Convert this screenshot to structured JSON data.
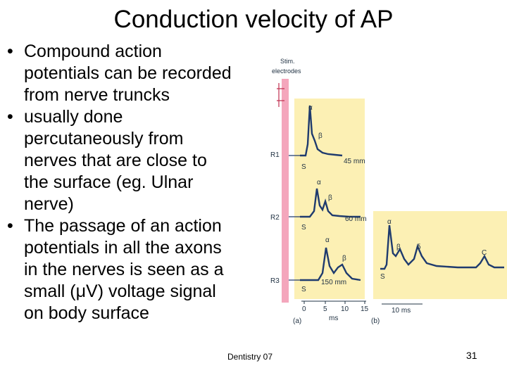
{
  "slide": {
    "title": "Conduction velocity of AP",
    "bullets": [
      {
        "bullet": "•",
        "lines": [
          "Compound action",
          "potentials can be recorded",
          "from nerve truncks"
        ]
      },
      {
        "bullet": "•",
        "lines": [
          "usually done",
          "percutaneously from",
          "nerves that are close to",
          "the surface (eg. Ulnar",
          "nerve)"
        ]
      },
      {
        "bullet": "•",
        "lines": [
          "The passage of an action",
          "potentials in all the axons",
          "in the nerves is seen as a",
          "small (μV) voltage signal",
          "on body surface"
        ]
      }
    ],
    "footer": "Dentistry 07",
    "page_number": "31"
  },
  "figure": {
    "stim_label_1": "Stim.",
    "stim_label_2": "electrodes",
    "panel_a": {
      "recordings": [
        {
          "label": "R1",
          "s_label": "S",
          "distance": "45 mm",
          "alpha": "α",
          "beta": "β"
        },
        {
          "label": "R2",
          "s_label": "S",
          "distance": "60 mm",
          "alpha": "α",
          "beta": "β"
        },
        {
          "label": "R3",
          "s_label": "S",
          "distance": "150 mm",
          "alpha": "α",
          "beta": "β"
        }
      ],
      "axis_ticks": [
        "0",
        "5",
        "10",
        "15"
      ],
      "axis_unit": "ms",
      "panel_label": "(a)"
    },
    "panel_b": {
      "s_label": "S",
      "peak_labels": [
        "α",
        "β",
        "δ",
        "C"
      ],
      "scale_bar": "10 ms",
      "panel_label": "(b)"
    },
    "colors": {
      "panel_bg": "#fcf0b4",
      "nerve": "#f4a6bc",
      "trace": "#1f3b6e"
    }
  }
}
